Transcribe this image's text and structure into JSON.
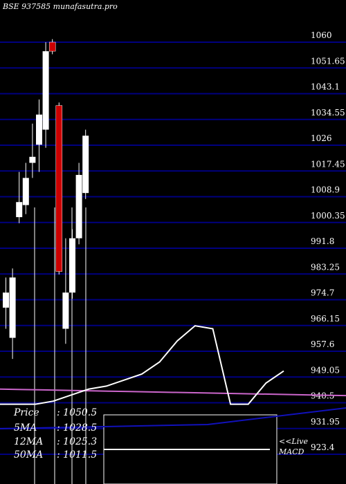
{
  "title": "BSE 937585 munafasutra.pro",
  "chart_data": {
    "type": "candlestick",
    "ylim": [
      923.4,
      1060
    ],
    "y_ticks": [
      "1060",
      "1051.65",
      "1043.1",
      "1034.55",
      "1026",
      "1017.45",
      "1008.9",
      "1000.35",
      "991.8",
      "983.25",
      "974.7",
      "966.15",
      "957.6",
      "949.05",
      "940.5",
      "931.95",
      "923.4"
    ],
    "candles": [
      {
        "open": 977,
        "close": 972,
        "high": 982,
        "low": 965,
        "color": "white"
      },
      {
        "open": 982,
        "close": 962,
        "high": 985,
        "low": 955,
        "color": "white"
      },
      {
        "open": 1002,
        "close": 1007,
        "high": 1017,
        "low": 1000,
        "color": "white"
      },
      {
        "open": 1006,
        "close": 1015,
        "high": 1020,
        "low": 1003,
        "color": "white"
      },
      {
        "open": 1020,
        "close": 1022,
        "high": 1033,
        "low": 1015,
        "color": "white"
      },
      {
        "open": 1026,
        "close": 1036,
        "high": 1041,
        "low": 1017,
        "color": "white"
      },
      {
        "open": 1031,
        "close": 1057,
        "high": 1060,
        "low": 1025,
        "color": "white"
      },
      {
        "open": 1060,
        "close": 1057,
        "high": 1061,
        "low": 1056,
        "color": "red"
      },
      {
        "open": 1039,
        "close": 984,
        "high": 1040,
        "low": 983,
        "color": "red"
      },
      {
        "open": 965,
        "close": 977,
        "high": 995,
        "low": 960,
        "color": "white"
      },
      {
        "open": 977,
        "close": 995,
        "high": 998,
        "low": 975,
        "color": "white"
      },
      {
        "open": 995,
        "close": 1016,
        "high": 1020,
        "low": 993,
        "color": "white"
      },
      {
        "open": 1010,
        "close": 1029,
        "high": 1031,
        "low": 1008,
        "color": "white"
      }
    ],
    "moving_averages": [
      {
        "name": "12MA",
        "values": [
          940,
          940,
          940,
          941,
          943,
          945,
          946,
          948,
          949,
          951,
          952,
          954
        ]
      },
      {
        "name": "50MA",
        "values": [
          944,
          944,
          944,
          944,
          944,
          944,
          944,
          944,
          944,
          944,
          944,
          944
        ]
      }
    ],
    "upper_series": [
      940,
      940,
      940,
      941,
      943,
      945,
      946,
      948,
      950,
      954,
      961,
      966,
      965,
      940,
      940,
      947,
      951
    ],
    "lower_series": [
      934,
      935,
      936,
      937,
      938,
      939,
      940,
      941,
      941,
      941,
      941,
      941,
      941,
      941,
      941,
      941,
      941
    ],
    "macd_ref": [
      945,
      945,
      945,
      945,
      945,
      945,
      945,
      945,
      945,
      945,
      945,
      945,
      945,
      945,
      945,
      945,
      945
    ],
    "grid": true
  },
  "info": {
    "price_label": "Price",
    "price_value": ": 1050.5",
    "ma5_label": "5MA",
    "ma5_value": ": 1028.5",
    "ma12_label": "12MA",
    "ma12_value": ": 1025.3",
    "ma50_label": "50MA",
    "ma50_value": ": 1011.5"
  },
  "macd_label_1": "<<Live",
  "macd_label_2": "MACD",
  "colors": {
    "grid": "#000080",
    "up": "#ffffff",
    "down": "#cc0000",
    "ma": "#cc66cc",
    "line": "#ffffff",
    "blue": "#1111bb"
  }
}
